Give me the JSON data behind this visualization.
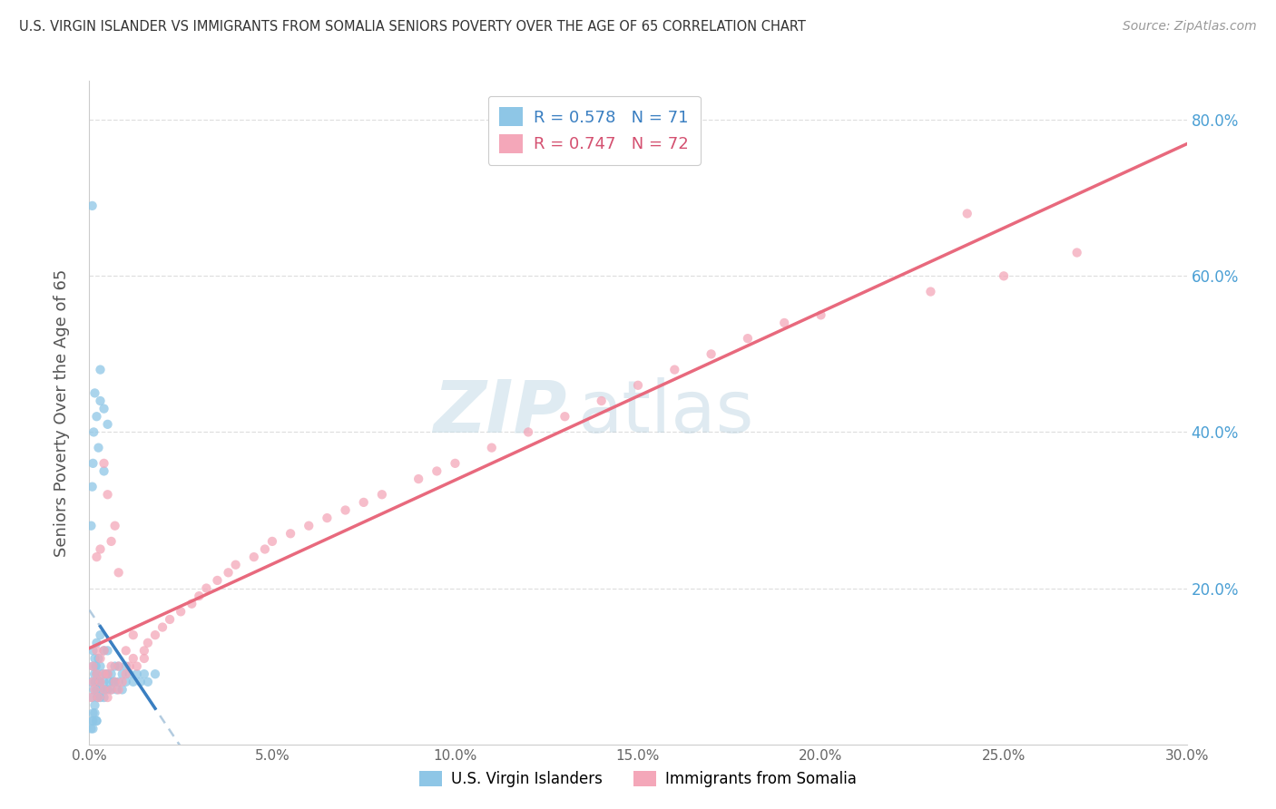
{
  "title": "U.S. VIRGIN ISLANDER VS IMMIGRANTS FROM SOMALIA SENIORS POVERTY OVER THE AGE OF 65 CORRELATION CHART",
  "source": "Source: ZipAtlas.com",
  "ylabel": "Seniors Poverty Over the Age of 65",
  "ytick_labels": [
    "80.0%",
    "60.0%",
    "40.0%",
    "20.0%"
  ],
  "ytick_values": [
    0.8,
    0.6,
    0.4,
    0.2
  ],
  "xlim": [
    0.0,
    0.3
  ],
  "ylim": [
    0.0,
    0.85
  ],
  "legend1_label": "U.S. Virgin Islanders",
  "legend2_label": "Immigrants from Somalia",
  "r1": 0.578,
  "n1": 71,
  "r2": 0.747,
  "n2": 72,
  "color_blue": "#8ec6e6",
  "color_pink": "#f4a7b9",
  "color_blue_line": "#3a7fc1",
  "color_pink_line": "#e8697d",
  "color_blue_dashed": "#a0bfd8",
  "background_color": "#ffffff",
  "grid_color": "#d8d8d8",
  "blue_points_x": [
    0.0005,
    0.0008,
    0.001,
    0.001,
    0.0012,
    0.0014,
    0.0015,
    0.0015,
    0.0016,
    0.0018,
    0.002,
    0.002,
    0.002,
    0.0022,
    0.0025,
    0.0025,
    0.003,
    0.003,
    0.003,
    0.003,
    0.0032,
    0.0035,
    0.004,
    0.004,
    0.004,
    0.0042,
    0.0045,
    0.005,
    0.005,
    0.005,
    0.0055,
    0.006,
    0.006,
    0.0065,
    0.007,
    0.007,
    0.0075,
    0.008,
    0.008,
    0.009,
    0.009,
    0.01,
    0.01,
    0.011,
    0.012,
    0.013,
    0.014,
    0.015,
    0.016,
    0.018,
    0.0005,
    0.0008,
    0.001,
    0.0012,
    0.0015,
    0.002,
    0.0025,
    0.003,
    0.003,
    0.004,
    0.004,
    0.005,
    0.001,
    0.0015,
    0.002,
    0.0005,
    0.0008,
    0.001,
    0.0008,
    0.001,
    0.002
  ],
  "blue_points_y": [
    0.08,
    0.06,
    0.1,
    0.12,
    0.07,
    0.09,
    0.05,
    0.11,
    0.08,
    0.1,
    0.07,
    0.09,
    0.13,
    0.06,
    0.08,
    0.11,
    0.06,
    0.08,
    0.1,
    0.14,
    0.07,
    0.09,
    0.06,
    0.08,
    0.12,
    0.07,
    0.09,
    0.07,
    0.09,
    0.12,
    0.08,
    0.07,
    0.09,
    0.08,
    0.08,
    0.1,
    0.07,
    0.08,
    0.1,
    0.07,
    0.09,
    0.08,
    0.1,
    0.09,
    0.08,
    0.09,
    0.08,
    0.09,
    0.08,
    0.09,
    0.28,
    0.33,
    0.36,
    0.4,
    0.45,
    0.42,
    0.38,
    0.44,
    0.48,
    0.43,
    0.35,
    0.41,
    0.03,
    0.04,
    0.03,
    0.02,
    0.03,
    0.04,
    0.69,
    0.02,
    0.03
  ],
  "pink_points_x": [
    0.0005,
    0.001,
    0.001,
    0.0015,
    0.002,
    0.002,
    0.0025,
    0.003,
    0.003,
    0.004,
    0.004,
    0.004,
    0.005,
    0.005,
    0.006,
    0.006,
    0.007,
    0.008,
    0.008,
    0.009,
    0.01,
    0.011,
    0.012,
    0.013,
    0.015,
    0.016,
    0.018,
    0.02,
    0.022,
    0.025,
    0.028,
    0.03,
    0.032,
    0.035,
    0.038,
    0.04,
    0.045,
    0.048,
    0.05,
    0.055,
    0.06,
    0.065,
    0.07,
    0.075,
    0.08,
    0.09,
    0.095,
    0.1,
    0.11,
    0.12,
    0.13,
    0.14,
    0.15,
    0.16,
    0.17,
    0.18,
    0.19,
    0.2,
    0.002,
    0.003,
    0.004,
    0.005,
    0.006,
    0.007,
    0.008,
    0.01,
    0.012,
    0.015,
    0.23,
    0.25,
    0.27,
    0.24
  ],
  "pink_points_y": [
    0.06,
    0.08,
    0.1,
    0.07,
    0.09,
    0.12,
    0.06,
    0.08,
    0.11,
    0.07,
    0.09,
    0.12,
    0.06,
    0.09,
    0.07,
    0.1,
    0.08,
    0.07,
    0.1,
    0.08,
    0.09,
    0.1,
    0.11,
    0.1,
    0.12,
    0.13,
    0.14,
    0.15,
    0.16,
    0.17,
    0.18,
    0.19,
    0.2,
    0.21,
    0.22,
    0.23,
    0.24,
    0.25,
    0.26,
    0.27,
    0.28,
    0.29,
    0.3,
    0.31,
    0.32,
    0.34,
    0.35,
    0.36,
    0.38,
    0.4,
    0.42,
    0.44,
    0.46,
    0.48,
    0.5,
    0.52,
    0.54,
    0.55,
    0.24,
    0.25,
    0.36,
    0.32,
    0.26,
    0.28,
    0.22,
    0.12,
    0.14,
    0.11,
    0.58,
    0.6,
    0.63,
    0.68
  ]
}
